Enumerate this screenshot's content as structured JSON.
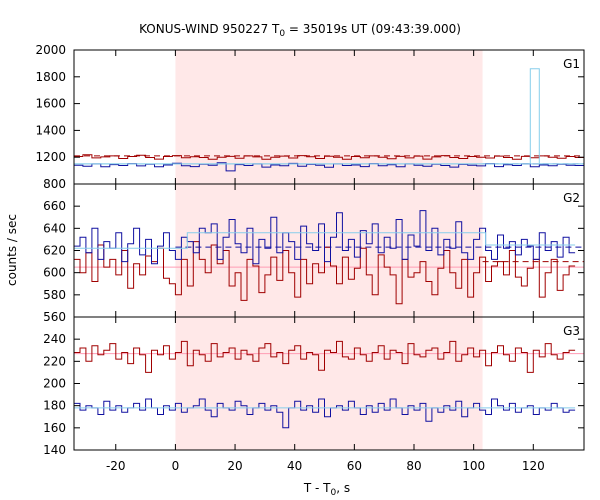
{
  "chart_data": {
    "type": "line",
    "title": "KONUS-WIND 950227 T",
    "title_sub": "0",
    "title_rest": " = 35019s UT (09:43:39.000)",
    "xlabel_main": "T - T",
    "xlabel_sub": "0",
    "xlabel_rest": ", s",
    "ylabel": "counts / sec",
    "xlim": [
      -34,
      137
    ],
    "x_ticks": [
      -20,
      0,
      20,
      40,
      60,
      80,
      100,
      120
    ],
    "shaded_interval": [
      0,
      103
    ],
    "colors": {
      "shade": "#ffe8e8",
      "dark_red": "#a00000",
      "dark_blue": "#1010a0",
      "light_blue": "#87ceeb",
      "pink": "#ff9cb4"
    },
    "panels": [
      {
        "label": "G1",
        "ylim": [
          1000,
          2000
        ],
        "y_ticks": [
          1000,
          1200,
          1400,
          1600,
          1800,
          2000
        ],
        "bottom_tick_label": "800",
        "series": [
          {
            "color": "dark_red",
            "x_start": -34,
            "step": 3,
            "values": [
              1205,
              1218,
              1195,
              1202,
              1210,
              1190,
              1205,
              1214,
              1198,
              1186,
              1205,
              1212,
              1196,
              1204,
              1198,
              1184,
              1200,
              1206,
              1192,
              1210,
              1202,
              1185,
              1200,
              1208,
              1194,
              1212,
              1204,
              1190,
              1207,
              1199,
              1185,
              1205,
              1196,
              1210,
              1200,
              1188,
              1206,
              1195,
              1208,
              1186,
              1202,
              1212,
              1198,
              1190,
              1205,
              1200,
              1194,
              1208,
              1198,
              1185,
              1206,
              1196,
              1210,
              1200,
              1192,
              1205,
              1198
            ]
          },
          {
            "color": "dark_blue",
            "x_start": -34,
            "step": 3,
            "values": [
              1140,
              1132,
              1150,
              1128,
              1145,
              1138,
              1152,
              1135,
              1148,
              1128,
              1142,
              1155,
              1136,
              1130,
              1148,
              1140,
              1158,
              1098,
              1145,
              1138,
              1150,
              1126,
              1142,
              1136,
              1154,
              1132,
              1146,
              1140,
              1125,
              1150,
              1138,
              1142,
              1130,
              1152,
              1136,
              1144,
              1128,
              1150,
              1140,
              1132,
              1148,
              1138,
              1126,
              1146,
              1140,
              1135,
              1152,
              1130,
              1144,
              1138,
              1150,
              1128,
              1142,
              1136,
              1148,
              1140,
              1138
            ]
          },
          {
            "color": "light_blue",
            "x_start": -34,
            "step": 3,
            "values": [
              1150,
              1150,
              1150,
              1150,
              1150,
              1150,
              1150,
              1150,
              1150,
              1150,
              1150,
              1150,
              1150,
              1150,
              1150,
              1150,
              1150,
              1150,
              1150,
              1150,
              1150,
              1150,
              1150,
              1150,
              1150,
              1150,
              1150,
              1150,
              1150,
              1150,
              1150,
              1150,
              1150,
              1150,
              1150,
              1150,
              1150,
              1150,
              1150,
              1150,
              1150,
              1150,
              1150,
              1150,
              1150,
              1150,
              1150,
              1150,
              1150,
              1150,
              1150,
              1860,
              1150,
              1150,
              1150,
              1150,
              1150
            ]
          }
        ],
        "levels": [
          {
            "color": "dark_red",
            "value": 1210,
            "style": "dashed",
            "x_from": -34
          },
          {
            "color": "dark_blue",
            "value": 1150,
            "style": "dashed",
            "x_from": 103
          },
          {
            "color": "light_blue",
            "value": 1150,
            "style": "solid",
            "x_from": -34
          }
        ]
      },
      {
        "label": "G2",
        "ylim": [
          560,
          680
        ],
        "y_ticks": [
          560,
          580,
          600,
          620,
          640,
          660
        ],
        "bottom_tick_label": "560",
        "series": [
          {
            "color": "dark_red",
            "x_start": -34,
            "step": 2,
            "values": [
              612,
              600,
              618,
              592,
              625,
              605,
              612,
              598,
              620,
              586,
              608,
              598,
              615,
              610,
              622,
              595,
              590,
              580,
              612,
              588,
              628,
              612,
              600,
              625,
              608,
              620,
              588,
              600,
              575,
              612,
              606,
              582,
              598,
              614,
              593,
              620,
              600,
              578,
              612,
              590,
              608,
              600,
              623,
              606,
              590,
              614,
              594,
              604,
              622,
              598,
              580,
              616,
              605,
              598,
              572,
              612,
              596,
              600,
              610,
              592,
              580,
              604,
              620,
              600,
              586,
              612,
              578,
              600,
              614,
              592,
              606,
              610,
              598,
              620,
              596,
              588,
              604,
              612,
              578,
              600,
              612,
              584,
              598,
              606
            ]
          },
          {
            "color": "dark_blue",
            "x_start": -34,
            "step": 2,
            "values": [
              624,
              632,
              618,
              640,
              612,
              628,
              622,
              636,
              610,
              626,
              640,
              616,
              630,
              608,
              624,
              636,
              620,
              612,
              632,
              628,
              618,
              640,
              636,
              644,
              612,
              632,
              648,
              626,
              618,
              640,
              608,
              630,
              622,
              650,
              618,
              636,
              628,
              612,
              642,
              626,
              620,
              644,
              610,
              632,
              654,
              620,
              630,
              614,
              638,
              626,
              644,
              618,
              632,
              622,
              648,
              612,
              634,
              624,
              656,
              620,
              640,
              616,
              630,
              622,
              646,
              618,
              612,
              630,
              640,
              620,
              612,
              634,
              622,
              628,
              616,
              630,
              624,
              612,
              636,
              620,
              628,
              614,
              632,
              618
            ]
          },
          {
            "color": "light_blue",
            "x_start": -34,
            "step": 2,
            "values": [
              622,
              622,
              622,
              622,
              622,
              622,
              622,
              622,
              622,
              622,
              622,
              622,
              622,
              622,
              622,
              622,
              622,
              622,
              622,
              636,
              636,
              636,
              636,
              636,
              636,
              636,
              636,
              636,
              636,
              636,
              636,
              636,
              636,
              636,
              636,
              636,
              636,
              636,
              636,
              636,
              636,
              636,
              636,
              636,
              636,
              636,
              636,
              636,
              636,
              636,
              636,
              636,
              636,
              636,
              636,
              636,
              636,
              636,
              636,
              636,
              636,
              636,
              636,
              636,
              636,
              636,
              636,
              636,
              636,
              625,
              625,
              625,
              625,
              625,
              625,
              625,
              625,
              625,
              625,
              625,
              625,
              625,
              625,
              625
            ]
          }
        ],
        "levels": [
          {
            "color": "pink",
            "value": 605,
            "style": "solid",
            "x_from": -34
          },
          {
            "color": "dark_blue",
            "value": 623,
            "style": "dashed",
            "x_from": 0
          },
          {
            "color": "dark_red",
            "value": 610,
            "style": "dashed",
            "x_from": 103
          }
        ]
      },
      {
        "label": "G3",
        "ylim": [
          140,
          260
        ],
        "y_ticks": [
          140,
          160,
          180,
          200,
          220,
          240
        ],
        "bottom_tick_label": "140",
        "series": [
          {
            "color": "dark_red",
            "x_start": -34,
            "step": 2,
            "values": [
              228,
              232,
              220,
              234,
              226,
              230,
              236,
              222,
              228,
              218,
              232,
              226,
              210,
              230,
              226,
              234,
              222,
              228,
              238,
              216,
              230,
              226,
              220,
              236,
              224,
              228,
              232,
              222,
              230,
              226,
              220,
              232,
              236,
              224,
              228,
              218,
              230,
              234,
              222,
              228,
              226,
              212,
              230,
              228,
              238,
              224,
              222,
              232,
              226,
              220,
              228,
              234,
              222,
              230,
              228,
              218,
              236,
              226,
              224,
              230,
              232,
              222,
              228,
              238,
              220,
              226,
              232,
              224,
              230,
              216,
              228,
              234,
              226,
              220,
              232,
              228,
              210,
              230,
              224,
              236,
              226,
              222,
              228,
              230
            ]
          },
          {
            "color": "dark_blue",
            "x_start": -34,
            "step": 2,
            "values": [
              182,
              176,
              180,
              178,
              172,
              184,
              176,
              180,
              174,
              178,
              182,
              176,
              186,
              178,
              172,
              180,
              176,
              182,
              174,
              178,
              180,
              186,
              176,
              170,
              182,
              178,
              176,
              184,
              180,
              172,
              178,
              182,
              176,
              180,
              174,
              160,
              178,
              184,
              176,
              180,
              174,
              186,
              170,
              178,
              180,
              176,
              184,
              178,
              172,
              180,
              174,
              182,
              176,
              186,
              178,
              172,
              180,
              176,
              182,
              166,
              178,
              174,
              180,
              176,
              184,
              170,
              178,
              182,
              176,
              172,
              186,
              180,
              176,
              182,
              174,
              178,
              180,
              172,
              178,
              176,
              182,
              178,
              174,
              176
            ]
          },
          {
            "color": "light_blue",
            "x_start": -34,
            "step": 2,
            "values": [
              178,
              178,
              178,
              178,
              178,
              178,
              178,
              178,
              178,
              178,
              178,
              178,
              178,
              178,
              178,
              178,
              178,
              178,
              178,
              178,
              178,
              178,
              178,
              178,
              178,
              178,
              178,
              178,
              178,
              178,
              178,
              178,
              178,
              178,
              178,
              178,
              178,
              178,
              178,
              178,
              178,
              178,
              178,
              178,
              178,
              178,
              178,
              178,
              178,
              178,
              178,
              178,
              178,
              178,
              178,
              178,
              178,
              178,
              178,
              178,
              178,
              178,
              178,
              178,
              178,
              178,
              178,
              178,
              178,
              178,
              178,
              178,
              178,
              178,
              178,
              178,
              178,
              178,
              178,
              178,
              178,
              178,
              178,
              178
            ]
          }
        ],
        "levels": [
          {
            "color": "pink",
            "value": 227,
            "style": "solid",
            "x_from": -34
          }
        ]
      }
    ]
  }
}
